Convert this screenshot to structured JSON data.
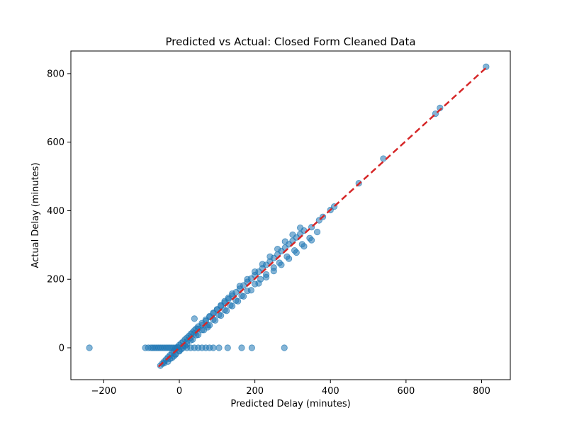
{
  "chart_data": {
    "type": "scatter",
    "title": "Predicted vs Actual: Closed Form Cleaned Data",
    "xlabel": "Predicted Delay (minutes)",
    "ylabel": "Actual Delay (minutes)",
    "xlim": [
      -287,
      876
    ],
    "ylim": [
      -93,
      866
    ],
    "xticks": [
      -200,
      0,
      200,
      400,
      600,
      800
    ],
    "yticks": [
      0,
      200,
      400,
      600,
      800
    ],
    "xtick_labels": [
      "−200",
      "0",
      "200",
      "400",
      "600",
      "800"
    ],
    "ytick_labels": [
      "0",
      "200",
      "400",
      "600",
      "800"
    ],
    "grid": false,
    "marker_color": "#1f77b4",
    "marker_alpha": 0.55,
    "reference_line": {
      "color": "#d62728",
      "style": "dashed",
      "x": [
        -55,
        815
      ],
      "y": [
        -55,
        820
      ]
    },
    "x": [
      -238,
      -90,
      -82,
      -75,
      -70,
      -65,
      -60,
      -55,
      -50,
      -45,
      -40,
      -35,
      -30,
      -25,
      -20,
      -15,
      -10,
      -5,
      10,
      20,
      30,
      40,
      50,
      60,
      70,
      80,
      90,
      105,
      128,
      165,
      192,
      278,
      -50,
      -45,
      -40,
      -35,
      -30,
      -25,
      -20,
      -15,
      -10,
      -5,
      0,
      5,
      10,
      15,
      20,
      25,
      30,
      35,
      40,
      45,
      50,
      60,
      70,
      80,
      90,
      100,
      110,
      120,
      130,
      140,
      150,
      160,
      170,
      180,
      190,
      200,
      210,
      220,
      230,
      240,
      250,
      260,
      270,
      280,
      290,
      300,
      310,
      320,
      330,
      350,
      370,
      380,
      400,
      410,
      475,
      540,
      678,
      690,
      812,
      -20,
      -10,
      0,
      10,
      20,
      30,
      40,
      50,
      60,
      70,
      80,
      90,
      100,
      110,
      120,
      130,
      140,
      160,
      180,
      200,
      220,
      240,
      260,
      280,
      300,
      320,
      -30,
      -15,
      0,
      15,
      30,
      45,
      60,
      75,
      90,
      105,
      120,
      135,
      150,
      165,
      180,
      200,
      215,
      230,
      250,
      265,
      285,
      305,
      325,
      345,
      365,
      -40,
      -25,
      -10,
      5,
      20,
      35,
      50,
      65,
      80,
      95,
      110,
      125,
      140,
      155,
      170,
      190,
      210,
      230,
      250,
      270,
      290,
      310,
      330,
      350,
      40,
      75
    ],
    "y": [
      0,
      0,
      0,
      0,
      0,
      0,
      0,
      0,
      0,
      0,
      0,
      0,
      0,
      0,
      0,
      0,
      0,
      0,
      0,
      0,
      0,
      0,
      0,
      0,
      0,
      0,
      0,
      0,
      0,
      0,
      0,
      0,
      -52,
      -46,
      -40,
      -34,
      -28,
      -22,
      -16,
      -10,
      -4,
      2,
      8,
      13,
      18,
      24,
      29,
      34,
      40,
      45,
      51,
      56,
      62,
      72,
      82,
      92,
      102,
      112,
      122,
      132,
      142,
      152,
      162,
      172,
      182,
      192,
      202,
      212,
      222,
      232,
      242,
      252,
      262,
      272,
      282,
      292,
      302,
      312,
      322,
      332,
      342,
      352,
      372,
      382,
      402,
      412,
      480,
      552,
      683,
      700,
      820,
      -30,
      -20,
      -8,
      5,
      18,
      30,
      42,
      55,
      66,
      78,
      90,
      100,
      112,
      124,
      136,
      146,
      158,
      180,
      200,
      222,
      244,
      266,
      288,
      310,
      330,
      350,
      -40,
      -25,
      -10,
      6,
      22,
      37,
      52,
      66,
      82,
      96,
      110,
      124,
      138,
      152,
      166,
      186,
      200,
      214,
      234,
      248,
      266,
      284,
      302,
      320,
      338,
      -45,
      -32,
      -18,
      -4,
      10,
      24,
      38,
      52,
      66,
      80,
      94,
      108,
      122,
      136,
      150,
      168,
      188,
      206,
      224,
      242,
      260,
      278,
      296,
      314,
      85,
      60
    ]
  }
}
